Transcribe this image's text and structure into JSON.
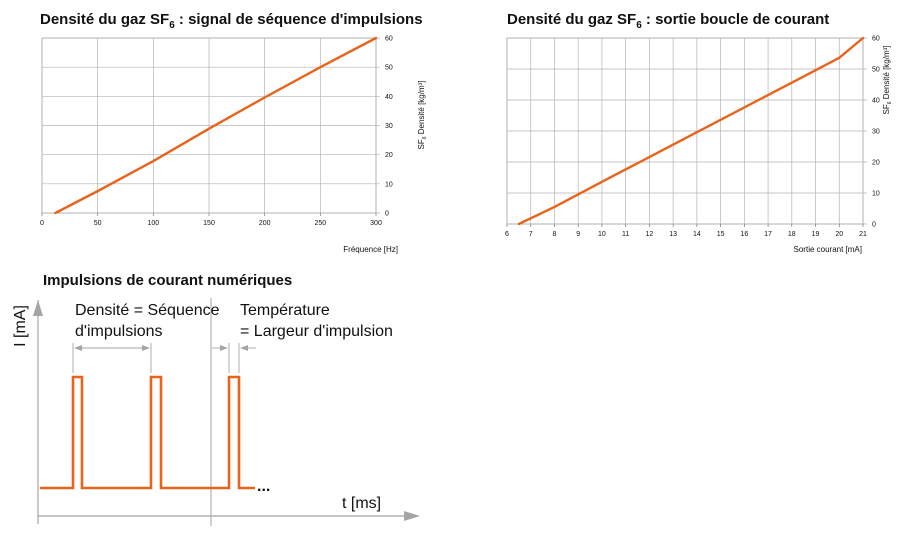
{
  "chart_data": [
    {
      "type": "line",
      "title_main": "Densité du gaz SF",
      "title_sub": "6",
      "title_rest": " : signal de séquence d'impulsions",
      "xlabel": "Fréquence [Hz]",
      "ylabel": "SF",
      "ylabel_sub": "6",
      "ylabel_rest": " Densité [kg/m³]",
      "xlim": [
        0,
        300
      ],
      "ylim": [
        0,
        60
      ],
      "xticks": [
        0,
        50,
        100,
        150,
        200,
        250,
        300
      ],
      "yticks": [
        0,
        10,
        20,
        30,
        40,
        50,
        60
      ],
      "grid": true,
      "series": [
        {
          "x": [
            12,
            50,
            100,
            150,
            200,
            250,
            300
          ],
          "y": [
            0,
            7.5,
            17.8,
            28.9,
            39.6,
            50,
            60
          ]
        }
      ],
      "color": "#e8641c"
    },
    {
      "type": "line",
      "title_main": "Densité du gaz SF",
      "title_sub": "6",
      "title_rest": " : sortie boucle de courant",
      "xlabel": "Sortie courant [mA]",
      "ylabel": "SF",
      "ylabel_sub": "6",
      "ylabel_rest": " Densité [kg/m³]",
      "xlim": [
        6,
        21
      ],
      "ylim": [
        0,
        60
      ],
      "xticks": [
        6,
        7,
        8,
        9,
        10,
        11,
        12,
        13,
        14,
        15,
        16,
        17,
        18,
        19,
        20,
        21
      ],
      "yticks": [
        0,
        10,
        20,
        30,
        40,
        50,
        60
      ],
      "grid": true,
      "series": [
        {
          "x": [
            6.5,
            8,
            10,
            12,
            14,
            16,
            18,
            20,
            21
          ],
          "y": [
            0,
            5.5,
            13.6,
            21.6,
            29.6,
            37.6,
            45.6,
            53.6,
            60
          ]
        }
      ],
      "color": "#e8641c"
    }
  ],
  "pulse_diagram": {
    "title": "Impulsions de courant numériques",
    "ylabel": "I [mA]",
    "xlabel": "t [ms]",
    "density_label_line1": "Densité = Séquence",
    "density_label_line2": "d'impulsions",
    "temp_label_line1": "Température",
    "temp_label_line2": "= Largeur d'impulsion",
    "continuation": "...",
    "pulse_color": "#e8641c"
  }
}
